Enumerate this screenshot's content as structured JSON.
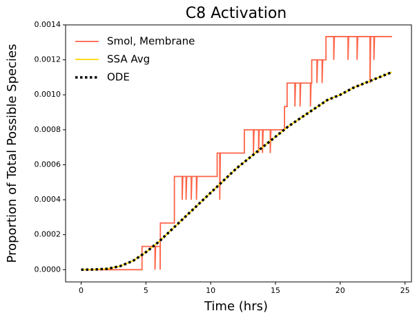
{
  "chart_data": {
    "type": "line",
    "title": "C8 Activation",
    "x_label": "Time (hrs)",
    "y_label": "Proportion of Total Possible Species",
    "xlim": [
      -1.2,
      25.5
    ],
    "xticks": [
      0,
      5,
      10,
      15,
      20,
      25
    ],
    "ylim": [
      -7e-05,
      0.0014
    ],
    "yticks": [
      {
        "value": 0,
        "label": "0.0000"
      },
      {
        "value": 0.0002,
        "label": "0.0002"
      },
      {
        "value": 0.0004,
        "label": "0.0004"
      },
      {
        "value": 0.0006,
        "label": "0.0006"
      },
      {
        "value": 0.0008,
        "label": "0.0008"
      },
      {
        "value": 0.001,
        "label": "0.0010"
      },
      {
        "value": 0.0012,
        "label": "0.0012"
      },
      {
        "value": 0.0014,
        "label": "0.0014"
      }
    ],
    "grid": false,
    "legend": "upper left",
    "series": [
      {
        "name": "Smol, Membrane",
        "color": "#ff6347",
        "dash": "solid",
        "x": [
          0,
          4.7,
          4.7,
          5.7,
          5.7,
          5.75,
          6.1,
          6.1,
          6.12,
          7.2,
          7.2,
          7.8,
          7.8,
          7.85,
          8.1,
          8.1,
          8.15,
          8.5,
          8.5,
          8.55,
          8.9,
          8.9,
          8.95,
          10.5,
          10.5,
          10.7,
          10.7,
          10.75,
          12.6,
          12.6,
          13.3,
          13.3,
          13.35,
          13.7,
          13.7,
          13.75,
          14.0,
          14.0,
          14.05,
          14.6,
          14.6,
          14.65,
          15.7,
          15.7,
          15.9,
          15.9,
          16.5,
          16.5,
          16.55,
          16.9,
          16.9,
          16.95,
          17.7,
          17.7,
          17.75,
          17.8,
          17.8,
          18.2,
          18.2,
          18.25,
          18.6,
          18.6,
          18.65,
          18.9,
          18.9,
          19.5,
          19.5,
          19.55,
          20.6,
          20.6,
          20.65,
          21.3,
          21.3,
          21.35,
          22.3,
          22.3,
          22.35,
          22.6,
          22.6,
          22.65,
          24
        ],
        "values": [
          0,
          0,
          0.000133,
          0.000133,
          0,
          0.000133,
          0.000133,
          0,
          0.000267,
          0.000267,
          0.000533,
          0.000533,
          0.0004,
          0.000533,
          0.000533,
          0.0004,
          0.000533,
          0.000533,
          0.0004,
          0.000533,
          0.000533,
          0.0004,
          0.000533,
          0.000533,
          0.000667,
          0.000667,
          0.0004,
          0.000667,
          0.000667,
          0.0008,
          0.0008,
          0.000667,
          0.0008,
          0.0008,
          0.000667,
          0.0008,
          0.0008,
          0.000667,
          0.0008,
          0.0008,
          0.000667,
          0.0008,
          0.0008,
          0.000933,
          0.000933,
          0.001067,
          0.001067,
          0.000933,
          0.001067,
          0.001067,
          0.000933,
          0.001067,
          0.001067,
          0.000933,
          0.001067,
          0.001067,
          0.0012,
          0.0012,
          0.001067,
          0.0012,
          0.0012,
          0.001067,
          0.0012,
          0.0012,
          0.001333,
          0.001333,
          0.0012,
          0.001333,
          0.001333,
          0.0012,
          0.001333,
          0.001333,
          0.0012,
          0.001333,
          0.001333,
          0.001067,
          0.001333,
          0.001333,
          0.0012,
          0.001333,
          0.001333
        ]
      },
      {
        "name": "SSA Avg",
        "color": "#ffd700",
        "dash": "solid",
        "x": [
          0,
          1,
          2,
          3,
          4,
          5,
          6,
          7,
          8,
          9,
          10,
          11,
          12,
          13,
          14,
          15,
          16,
          17,
          18,
          19,
          20,
          21,
          22,
          23,
          24
        ],
        "values": [
          0,
          1e-06,
          5e-06,
          2e-05,
          5e-05,
          0.0001,
          0.00016,
          0.00023,
          0.0003,
          0.00037,
          0.00044,
          0.00051,
          0.00058,
          0.00064,
          0.0007,
          0.00076,
          0.00082,
          0.00087,
          0.00092,
          0.00097,
          0.001,
          0.00104,
          0.00107,
          0.0011,
          0.00113
        ]
      },
      {
        "name": "ODE",
        "color": "#000000",
        "dash": "dotted",
        "x": [
          0,
          1,
          2,
          3,
          4,
          5,
          6,
          7,
          8,
          9,
          10,
          11,
          12,
          13,
          14,
          15,
          16,
          17,
          18,
          19,
          20,
          21,
          22,
          23,
          24
        ],
        "values": [
          0,
          1e-06,
          5e-06,
          2e-05,
          5e-05,
          0.0001,
          0.00016,
          0.00023,
          0.0003,
          0.00037,
          0.00044,
          0.00051,
          0.00058,
          0.00064,
          0.0007,
          0.00076,
          0.00082,
          0.00087,
          0.00092,
          0.00097,
          0.001,
          0.00104,
          0.00107,
          0.0011,
          0.00113
        ]
      }
    ]
  }
}
